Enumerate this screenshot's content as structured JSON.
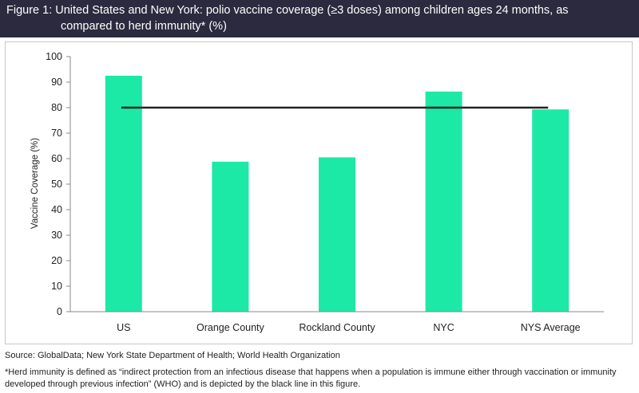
{
  "header": {
    "line1": "Figure 1: United States and New York: polio vaccine coverage (≥3 doses) among children ages 24 months, as",
    "line2": "compared to herd immunity* (%)"
  },
  "chart_data": {
    "type": "bar",
    "categories": [
      "US",
      "Orange County",
      "Rockland County",
      "NYC",
      "NYS Average"
    ],
    "values": [
      92.5,
      58.8,
      60.5,
      86.3,
      79.3
    ],
    "ylabel": "Vaccine Coverage (%)",
    "xlabel": "",
    "ylim": [
      0,
      100
    ],
    "yticks": [
      0,
      10,
      20,
      30,
      40,
      50,
      60,
      70,
      80,
      90,
      100
    ],
    "reference_line": 80,
    "bar_color": "#1de9a6",
    "line_color": "#222222",
    "grid": false
  },
  "source_text": "Source: GlobalData; New York State Department of Health; World Health Organization",
  "footnote": {
    "line1": "*Herd immunity is defined as “indirect protection from an infectious disease that happens when a population is immune either through vaccination or immunity",
    "line2": "developed through previous infection” (WHO) and is depicted by the black line in this figure."
  }
}
